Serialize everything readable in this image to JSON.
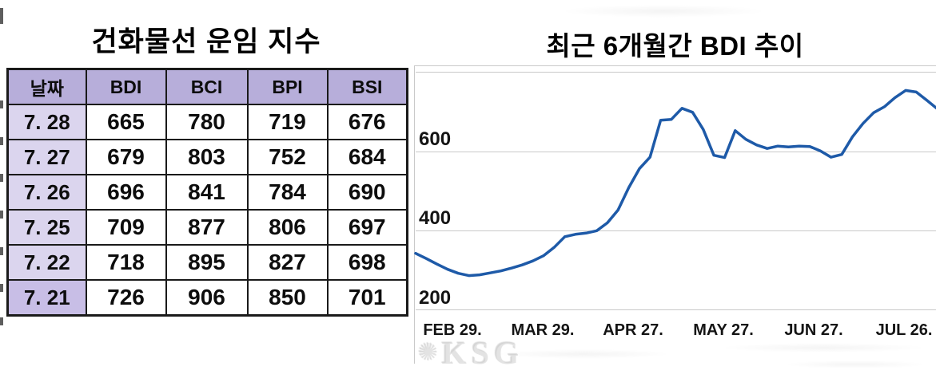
{
  "table_section": {
    "title": "건화물선 운임 지수",
    "columns": [
      "날짜",
      "BDI",
      "BCI",
      "BPI",
      "BSI"
    ],
    "rows": [
      [
        "7. 28",
        "665",
        "780",
        "719",
        "676"
      ],
      [
        "7. 27",
        "679",
        "803",
        "752",
        "684"
      ],
      [
        "7. 26",
        "696",
        "841",
        "784",
        "690"
      ],
      [
        "7. 25",
        "709",
        "877",
        "806",
        "697"
      ],
      [
        "7. 22",
        "718",
        "895",
        "827",
        "698"
      ],
      [
        "7. 21",
        "726",
        "906",
        "850",
        "701"
      ]
    ],
    "colors": {
      "header_bg": "#b7aeda",
      "date_cell_bg": "#dbd5ee",
      "last_date_cell_bg": "#c8bee6",
      "border": "#1a1a1a"
    }
  },
  "chart_section": {
    "title": "최근 6개월간 BDI 추이",
    "watermark": {
      "icon": "✺",
      "text": "KSG"
    }
  },
  "chart_data": {
    "type": "line",
    "series_name": "BDI",
    "title": "최근 6개월간 BDI 추이",
    "xlabel": "",
    "ylabel": "",
    "ylim": [
      200,
      800
    ],
    "grid": true,
    "line_color": "#1e5aa8",
    "gridline_color": "#c9c9c9",
    "y_ticks": [
      {
        "value": 800,
        "label": ""
      },
      {
        "value": 600,
        "label": "600"
      },
      {
        "value": 400,
        "label": "400"
      },
      {
        "value": 200,
        "label": "200"
      }
    ],
    "x_ticks": [
      {
        "label": "FEB 29."
      },
      {
        "label": "MAR 29."
      },
      {
        "label": "APR 27."
      },
      {
        "label": "MAY 27."
      },
      {
        "label": "JUN 27."
      },
      {
        "label": "JUL 26."
      }
    ],
    "values": [
      343,
      330,
      316,
      303,
      293,
      287,
      289,
      294,
      299,
      306,
      314,
      324,
      337,
      358,
      385,
      391,
      394,
      400,
      420,
      452,
      508,
      556,
      585,
      678,
      680,
      708,
      698,
      655,
      590,
      584,
      652,
      630,
      616,
      607,
      613,
      611,
      613,
      612,
      601,
      585,
      592,
      636,
      670,
      697,
      712,
      735,
      753,
      749,
      728,
      706
    ]
  }
}
